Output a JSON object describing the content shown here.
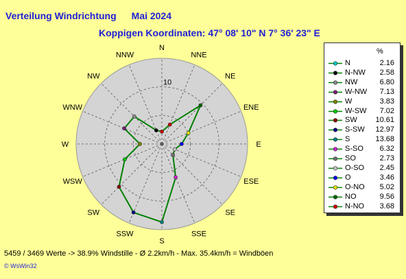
{
  "header": {
    "title_a": "Verteilung Windrichtung",
    "title_b": "Mai 2024",
    "subtitle": "Koppigen  Koordinaten: 47° 08' 10\" N  7° 36' 23\" E"
  },
  "chart_data": {
    "type": "radar",
    "title": "Verteilung Windrichtung   Mai 2024",
    "directions": [
      "N",
      "NNE",
      "NE",
      "ENE",
      "E",
      "ESE",
      "SE",
      "SSE",
      "S",
      "SSW",
      "SW",
      "WSW",
      "W",
      "WNW",
      "NW",
      "NNW"
    ],
    "ring_label": "10",
    "rings": [
      5,
      10,
      15
    ],
    "rmax": 15,
    "grid": true,
    "line_color": "#008000",
    "legend_placement": "right",
    "legend_unit": "%",
    "legend": [
      {
        "name": "N",
        "value": "2.16",
        "color": "#00c8c8"
      },
      {
        "name": "N-NW",
        "value": "2.58",
        "color": "#000000"
      },
      {
        "name": "NW",
        "value": "6.80",
        "color": "#888888"
      },
      {
        "name": "W-NW",
        "value": "7.13",
        "color": "#7a1a7a"
      },
      {
        "name": "W",
        "value": "3.83",
        "color": "#808000"
      },
      {
        "name": "W-SW",
        "value": "7.02",
        "color": "#00c800"
      },
      {
        "name": "SW",
        "value": "10.61",
        "color": "#8b0000"
      },
      {
        "name": "S-SW",
        "value": "12.97",
        "color": "#000080"
      },
      {
        "name": "S",
        "value": "13.68",
        "color": "#008080"
      },
      {
        "name": "S-SO",
        "value": "6.32",
        "color": "#d020d0"
      },
      {
        "name": "SO",
        "value": "2.73",
        "color": "#707070"
      },
      {
        "name": "O-SO",
        "value": "2.45",
        "color": "#c0c0c0"
      },
      {
        "name": "O",
        "value": "3.46",
        "color": "#0000ff"
      },
      {
        "name": "O-NO",
        "value": "5.02",
        "color": "#e0e000"
      },
      {
        "name": "NO",
        "value": "9.56",
        "color": "#006400"
      },
      {
        "name": "N-NO",
        "value": "3.68",
        "color": "#cc0000"
      }
    ],
    "points": [
      {
        "dir": "N",
        "value": 2.16,
        "color": "#cc0000"
      },
      {
        "dir": "NNE",
        "value": 3.68,
        "color": "#cc0000"
      },
      {
        "dir": "NE",
        "value": 9.56,
        "color": "#006400"
      },
      {
        "dir": "ENE",
        "value": 5.02,
        "color": "#e0e000"
      },
      {
        "dir": "E",
        "value": 3.46,
        "color": "#0000ff"
      },
      {
        "dir": "ESE",
        "value": 2.45,
        "color": "#c0c0c0"
      },
      {
        "dir": "SE",
        "value": 2.73,
        "color": "#707070"
      },
      {
        "dir": "SSE",
        "value": 6.32,
        "color": "#d020d0"
      },
      {
        "dir": "S",
        "value": 13.68,
        "color": "#008080"
      },
      {
        "dir": "SSW",
        "value": 12.97,
        "color": "#000080"
      },
      {
        "dir": "SW",
        "value": 10.61,
        "color": "#8b0000"
      },
      {
        "dir": "WSW",
        "value": 7.02,
        "color": "#00c800"
      },
      {
        "dir": "W",
        "value": 3.83,
        "color": "#808000"
      },
      {
        "dir": "WNW",
        "value": 7.13,
        "color": "#7a1a7a"
      },
      {
        "dir": "NW",
        "value": 6.8,
        "color": "#888888"
      },
      {
        "dir": "NNW",
        "value": 2.58,
        "color": "#000000"
      }
    ]
  },
  "footer": {
    "stats": "5459 / 3469 Werte  -> 38.9% Windstille   -   Ø 2.2km/h  -  Max. 35.4km/h = Windböen",
    "credit": "© WsWin32"
  }
}
